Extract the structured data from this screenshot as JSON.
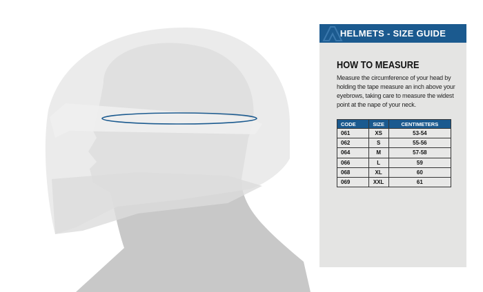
{
  "header": {
    "title": "HELMETS - SIZE GUIDE",
    "logo": "brand-logo"
  },
  "section": {
    "title": "HOW TO MEASURE",
    "description": "Measure the circumference of your head by holding the tape measure an inch above your eyebrows, taking care to measure the widest point at the nape of your neck."
  },
  "table": {
    "headers": [
      "CODE",
      "SIZE",
      "CENTIMETERS"
    ],
    "rows": [
      [
        "061",
        "XS",
        "53-54"
      ],
      [
        "062",
        "S",
        "55-56"
      ],
      [
        "064",
        "M",
        "57-58"
      ],
      [
        "066",
        "L",
        "59"
      ],
      [
        "068",
        "XL",
        "60"
      ],
      [
        "069",
        "XXL",
        "61"
      ]
    ]
  },
  "colors": {
    "accent": "#1b5a8f",
    "panel": "#e4e4e3",
    "measure_line": "#1b5a8f"
  }
}
